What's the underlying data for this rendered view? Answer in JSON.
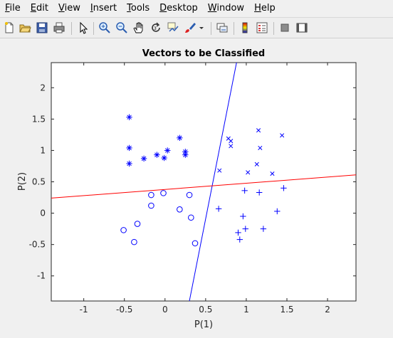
{
  "menu": {
    "items": [
      {
        "key": "F",
        "rest": "ile"
      },
      {
        "key": "E",
        "rest": "dit"
      },
      {
        "key": "V",
        "rest": "iew"
      },
      {
        "key": "I",
        "rest": "nsert"
      },
      {
        "key": "T",
        "rest": "ools"
      },
      {
        "key": "D",
        "rest": "esktop"
      },
      {
        "key": "W",
        "rest": "indow"
      },
      {
        "key": "H",
        "rest": "elp"
      }
    ]
  },
  "toolbar": {
    "icons": [
      "new-file-icon",
      "open-folder-icon",
      "save-icon",
      "print-icon",
      "pointer-icon",
      "zoom-in-icon",
      "zoom-out-icon",
      "pan-hand-icon",
      "rotate-3d-icon",
      "data-cursor-icon",
      "brush-icon",
      "dropdown-arrow-icon",
      "link-plot-icon",
      "colorbar-icon",
      "legend-icon",
      "hide-plot-tools-icon",
      "show-plot-tools-icon"
    ]
  },
  "colors": {
    "blue": "#0000ff",
    "red": "#ff0000",
    "axes_bg": "#ffffff"
  },
  "chart_data": {
    "type": "scatter",
    "title": "Vectors to be Classified",
    "xlabel": "P(1)",
    "ylabel": "P(2)",
    "xlim": [
      -1.4,
      2.35
    ],
    "ylim": [
      -1.4,
      2.4
    ],
    "xticks": [
      -1,
      -0.5,
      0,
      0.5,
      1,
      1.5,
      2
    ],
    "xtick_labels": [
      "-1",
      "-0.5",
      "0",
      "0.5",
      "1",
      "1.5",
      "2"
    ],
    "yticks": [
      -1,
      -0.5,
      0,
      0.5,
      1,
      1.5,
      2
    ],
    "ytick_labels": [
      "-1",
      "-0.5",
      "0",
      "0.5",
      "1",
      "1.5",
      "2"
    ],
    "grid": false,
    "series": [
      {
        "marker": "star",
        "color": "#0000ff",
        "points": [
          [
            -0.44,
            1.53
          ],
          [
            -0.44,
            1.04
          ],
          [
            -0.44,
            0.79
          ],
          [
            -0.26,
            0.87
          ],
          [
            -0.1,
            0.93
          ],
          [
            -0.01,
            0.88
          ],
          [
            0.03,
            1.0
          ],
          [
            0.18,
            1.2
          ],
          [
            0.25,
            0.98
          ],
          [
            0.25,
            0.93
          ]
        ]
      },
      {
        "marker": "cross",
        "color": "#0000ff",
        "points": [
          [
            0.67,
            0.68
          ],
          [
            0.78,
            1.19
          ],
          [
            0.81,
            1.15
          ],
          [
            0.81,
            1.07
          ],
          [
            1.02,
            0.65
          ],
          [
            1.13,
            0.78
          ],
          [
            1.15,
            1.32
          ],
          [
            1.17,
            1.04
          ],
          [
            1.32,
            0.63
          ],
          [
            1.44,
            1.24
          ]
        ]
      },
      {
        "marker": "circle",
        "color": "#0000ff",
        "points": [
          [
            -0.51,
            -0.27
          ],
          [
            -0.38,
            -0.46
          ],
          [
            -0.34,
            -0.17
          ],
          [
            -0.17,
            0.29
          ],
          [
            -0.17,
            0.12
          ],
          [
            -0.02,
            0.32
          ],
          [
            0.18,
            0.06
          ],
          [
            0.3,
            0.29
          ],
          [
            0.32,
            -0.07
          ],
          [
            0.37,
            -0.48
          ]
        ]
      },
      {
        "marker": "plus",
        "color": "#0000ff",
        "points": [
          [
            0.66,
            0.07
          ],
          [
            0.9,
            -0.31
          ],
          [
            0.92,
            -0.42
          ],
          [
            0.96,
            -0.05
          ],
          [
            0.98,
            0.36
          ],
          [
            0.99,
            -0.25
          ],
          [
            1.16,
            0.33
          ],
          [
            1.21,
            -0.25
          ],
          [
            1.38,
            0.03
          ],
          [
            1.46,
            0.4
          ]
        ]
      }
    ],
    "lines": [
      {
        "color": "#0000ff",
        "points": [
          [
            0.3,
            -1.4
          ],
          [
            0.88,
            2.4
          ]
        ]
      },
      {
        "color": "#ff0000",
        "points": [
          [
            -1.4,
            0.24
          ],
          [
            2.35,
            0.61
          ]
        ]
      }
    ]
  }
}
